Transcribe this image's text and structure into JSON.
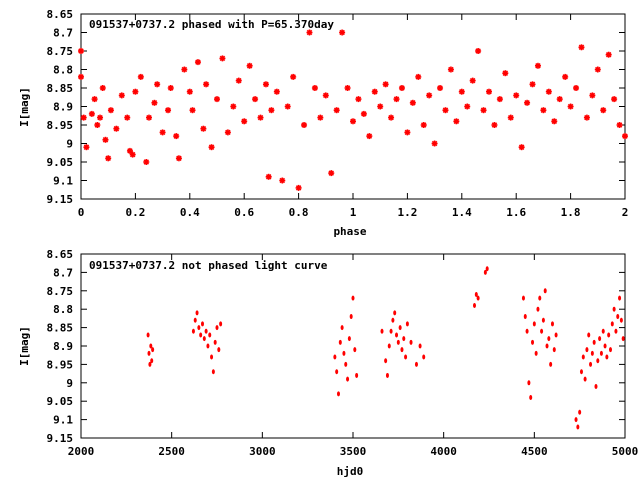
{
  "chart_data": [
    {
      "type": "scatter",
      "title": "091537+0737.2 phased with P=65.370day",
      "xlabel": "phase",
      "ylabel": "I[mag]",
      "xlim": [
        0,
        2
      ],
      "ylim": [
        8.65,
        9.15
      ],
      "y_inverted": true,
      "xticks": [
        0,
        0.2,
        0.4,
        0.6,
        0.8,
        1,
        1.2,
        1.4,
        1.6,
        1.8,
        2
      ],
      "xtick_labels": [
        "0",
        "0.2",
        "0.4",
        "0.6",
        "0.8",
        "1",
        "1.2",
        "1.4",
        "1.6",
        "1.8",
        "2"
      ],
      "yticks": [
        8.65,
        8.7,
        8.75,
        8.8,
        8.85,
        8.9,
        8.95,
        9.0,
        9.05,
        9.1,
        9.15
      ],
      "ytick_labels": [
        "8.65",
        "8.7",
        "8.75",
        "8.8",
        "8.85",
        "8.9",
        "8.95",
        "9",
        "9.05",
        "9.1",
        "9.15"
      ],
      "grid": false,
      "marker": "star",
      "color": "#ff0000",
      "points": [
        [
          0.0,
          8.75
        ],
        [
          0.0,
          8.82
        ],
        [
          0.01,
          8.93
        ],
        [
          0.02,
          9.01
        ],
        [
          0.04,
          8.92
        ],
        [
          0.05,
          8.88
        ],
        [
          0.06,
          8.95
        ],
        [
          0.07,
          8.93
        ],
        [
          0.08,
          8.85
        ],
        [
          0.09,
          8.99
        ],
        [
          0.1,
          9.04
        ],
        [
          0.11,
          8.91
        ],
        [
          0.13,
          8.96
        ],
        [
          0.15,
          8.87
        ],
        [
          0.17,
          8.93
        ],
        [
          0.18,
          9.02
        ],
        [
          0.19,
          9.03
        ],
        [
          0.2,
          8.86
        ],
        [
          0.22,
          8.82
        ],
        [
          0.24,
          9.05
        ],
        [
          0.25,
          8.93
        ],
        [
          0.27,
          8.89
        ],
        [
          0.28,
          8.84
        ],
        [
          0.3,
          8.97
        ],
        [
          0.32,
          8.91
        ],
        [
          0.33,
          8.85
        ],
        [
          0.35,
          8.98
        ],
        [
          0.36,
          9.04
        ],
        [
          0.38,
          8.8
        ],
        [
          0.4,
          8.86
        ],
        [
          0.41,
          8.91
        ],
        [
          0.43,
          8.78
        ],
        [
          0.45,
          8.96
        ],
        [
          0.46,
          8.84
        ],
        [
          0.48,
          9.01
        ],
        [
          0.5,
          8.88
        ],
        [
          0.52,
          8.77
        ],
        [
          0.54,
          8.97
        ],
        [
          0.56,
          8.9
        ],
        [
          0.58,
          8.83
        ],
        [
          0.6,
          8.94
        ],
        [
          0.62,
          8.79
        ],
        [
          0.64,
          8.88
        ],
        [
          0.66,
          8.93
        ],
        [
          0.68,
          8.84
        ],
        [
          0.69,
          9.09
        ],
        [
          0.7,
          8.91
        ],
        [
          0.72,
          8.86
        ],
        [
          0.74,
          9.1
        ],
        [
          0.76,
          8.9
        ],
        [
          0.78,
          8.82
        ],
        [
          0.8,
          9.12
        ],
        [
          0.82,
          8.95
        ],
        [
          0.84,
          8.7
        ],
        [
          0.86,
          8.85
        ],
        [
          0.88,
          8.93
        ],
        [
          0.9,
          8.87
        ],
        [
          0.92,
          9.08
        ],
        [
          0.94,
          8.91
        ],
        [
          0.96,
          8.7
        ],
        [
          0.98,
          8.85
        ],
        [
          1.0,
          8.94
        ],
        [
          1.02,
          8.88
        ],
        [
          1.04,
          8.92
        ],
        [
          1.06,
          8.98
        ],
        [
          1.08,
          8.86
        ],
        [
          1.1,
          8.9
        ],
        [
          1.12,
          8.84
        ],
        [
          1.14,
          8.93
        ],
        [
          1.16,
          8.88
        ],
        [
          1.18,
          8.85
        ],
        [
          1.2,
          8.97
        ],
        [
          1.22,
          8.89
        ],
        [
          1.24,
          8.82
        ],
        [
          1.26,
          8.95
        ],
        [
          1.28,
          8.87
        ],
        [
          1.3,
          9.0
        ],
        [
          1.32,
          8.85
        ],
        [
          1.34,
          8.91
        ],
        [
          1.36,
          8.8
        ],
        [
          1.38,
          8.94
        ],
        [
          1.4,
          8.86
        ],
        [
          1.42,
          8.9
        ],
        [
          1.44,
          8.83
        ],
        [
          1.46,
          8.75
        ],
        [
          1.48,
          8.91
        ],
        [
          1.5,
          8.86
        ],
        [
          1.52,
          8.95
        ],
        [
          1.54,
          8.88
        ],
        [
          1.56,
          8.81
        ],
        [
          1.58,
          8.93
        ],
        [
          1.6,
          8.87
        ],
        [
          1.62,
          9.01
        ],
        [
          1.64,
          8.89
        ],
        [
          1.66,
          8.84
        ],
        [
          1.68,
          8.79
        ],
        [
          1.7,
          8.91
        ],
        [
          1.72,
          8.86
        ],
        [
          1.74,
          8.94
        ],
        [
          1.76,
          8.88
        ],
        [
          1.78,
          8.82
        ],
        [
          1.8,
          8.9
        ],
        [
          1.82,
          8.85
        ],
        [
          1.84,
          8.74
        ],
        [
          1.86,
          8.93
        ],
        [
          1.88,
          8.87
        ],
        [
          1.9,
          8.8
        ],
        [
          1.92,
          8.91
        ],
        [
          1.94,
          8.76
        ],
        [
          1.96,
          8.88
        ],
        [
          1.98,
          8.95
        ],
        [
          2.0,
          8.98
        ]
      ]
    },
    {
      "type": "scatter",
      "title": "091537+0737.2 not phased light curve",
      "xlabel": "hjd0",
      "ylabel": "I[mag]",
      "xlim": [
        2000,
        5000
      ],
      "ylim": [
        8.65,
        9.15
      ],
      "y_inverted": true,
      "xticks": [
        2000,
        2500,
        3000,
        3500,
        4000,
        4500,
        5000
      ],
      "xtick_labels": [
        "2000",
        "2500",
        "3000",
        "3500",
        "4000",
        "4500",
        "5000"
      ],
      "yticks": [
        8.65,
        8.7,
        8.75,
        8.8,
        8.85,
        8.9,
        8.95,
        9.0,
        9.05,
        9.1,
        9.15
      ],
      "ytick_labels": [
        "8.65",
        "8.7",
        "8.75",
        "8.8",
        "8.85",
        "8.9",
        "8.95",
        "9",
        "9.05",
        "9.1",
        "9.15"
      ],
      "grid": false,
      "marker": "dot",
      "color": "#ff0000",
      "points": [
        [
          2370,
          8.87
        ],
        [
          2375,
          8.92
        ],
        [
          2380,
          8.95
        ],
        [
          2385,
          8.9
        ],
        [
          2390,
          8.94
        ],
        [
          2395,
          8.91
        ],
        [
          2620,
          8.86
        ],
        [
          2630,
          8.83
        ],
        [
          2640,
          8.81
        ],
        [
          2650,
          8.85
        ],
        [
          2660,
          8.87
        ],
        [
          2670,
          8.84
        ],
        [
          2680,
          8.88
        ],
        [
          2690,
          8.86
        ],
        [
          2700,
          8.9
        ],
        [
          2710,
          8.87
        ],
        [
          2720,
          8.93
        ],
        [
          2730,
          8.97
        ],
        [
          2740,
          8.89
        ],
        [
          2750,
          8.85
        ],
        [
          2760,
          8.91
        ],
        [
          2770,
          8.84
        ],
        [
          3400,
          8.93
        ],
        [
          3410,
          8.97
        ],
        [
          3420,
          9.03
        ],
        [
          3430,
          8.89
        ],
        [
          3440,
          8.85
        ],
        [
          3450,
          8.92
        ],
        [
          3460,
          8.95
        ],
        [
          3470,
          8.99
        ],
        [
          3480,
          8.88
        ],
        [
          3490,
          8.82
        ],
        [
          3500,
          8.77
        ],
        [
          3510,
          8.91
        ],
        [
          3520,
          8.98
        ],
        [
          3660,
          8.86
        ],
        [
          3680,
          8.94
        ],
        [
          3690,
          8.98
        ],
        [
          3700,
          8.9
        ],
        [
          3710,
          8.86
        ],
        [
          3720,
          8.83
        ],
        [
          3730,
          8.81
        ],
        [
          3740,
          8.87
        ],
        [
          3750,
          8.89
        ],
        [
          3760,
          8.85
        ],
        [
          3770,
          8.91
        ],
        [
          3780,
          8.88
        ],
        [
          3790,
          8.93
        ],
        [
          3800,
          8.84
        ],
        [
          3820,
          8.89
        ],
        [
          3850,
          8.95
        ],
        [
          3870,
          8.9
        ],
        [
          3890,
          8.93
        ],
        [
          4170,
          8.79
        ],
        [
          4180,
          8.76
        ],
        [
          4190,
          8.77
        ],
        [
          4230,
          8.7
        ],
        [
          4240,
          8.69
        ],
        [
          4440,
          8.77
        ],
        [
          4450,
          8.82
        ],
        [
          4460,
          8.86
        ],
        [
          4470,
          9.0
        ],
        [
          4480,
          9.04
        ],
        [
          4490,
          8.89
        ],
        [
          4500,
          8.84
        ],
        [
          4510,
          8.92
        ],
        [
          4520,
          8.8
        ],
        [
          4530,
          8.77
        ],
        [
          4540,
          8.86
        ],
        [
          4550,
          8.83
        ],
        [
          4560,
          8.75
        ],
        [
          4570,
          8.9
        ],
        [
          4580,
          8.88
        ],
        [
          4590,
          8.95
        ],
        [
          4600,
          8.84
        ],
        [
          4610,
          8.91
        ],
        [
          4620,
          8.87
        ],
        [
          4730,
          9.1
        ],
        [
          4740,
          9.12
        ],
        [
          4750,
          9.08
        ],
        [
          4760,
          8.97
        ],
        [
          4770,
          8.93
        ],
        [
          4780,
          8.99
        ],
        [
          4790,
          8.91
        ],
        [
          4800,
          8.87
        ],
        [
          4810,
          8.95
        ],
        [
          4820,
          8.92
        ],
        [
          4830,
          8.89
        ],
        [
          4840,
          9.01
        ],
        [
          4850,
          8.94
        ],
        [
          4860,
          8.88
        ],
        [
          4870,
          8.92
        ],
        [
          4880,
          8.86
        ],
        [
          4890,
          8.9
        ],
        [
          4900,
          8.93
        ],
        [
          4910,
          8.87
        ],
        [
          4920,
          8.91
        ],
        [
          4930,
          8.84
        ],
        [
          4940,
          8.8
        ],
        [
          4950,
          8.86
        ],
        [
          4960,
          8.82
        ],
        [
          4970,
          8.77
        ],
        [
          4980,
          8.83
        ],
        [
          4990,
          8.88
        ]
      ]
    }
  ]
}
